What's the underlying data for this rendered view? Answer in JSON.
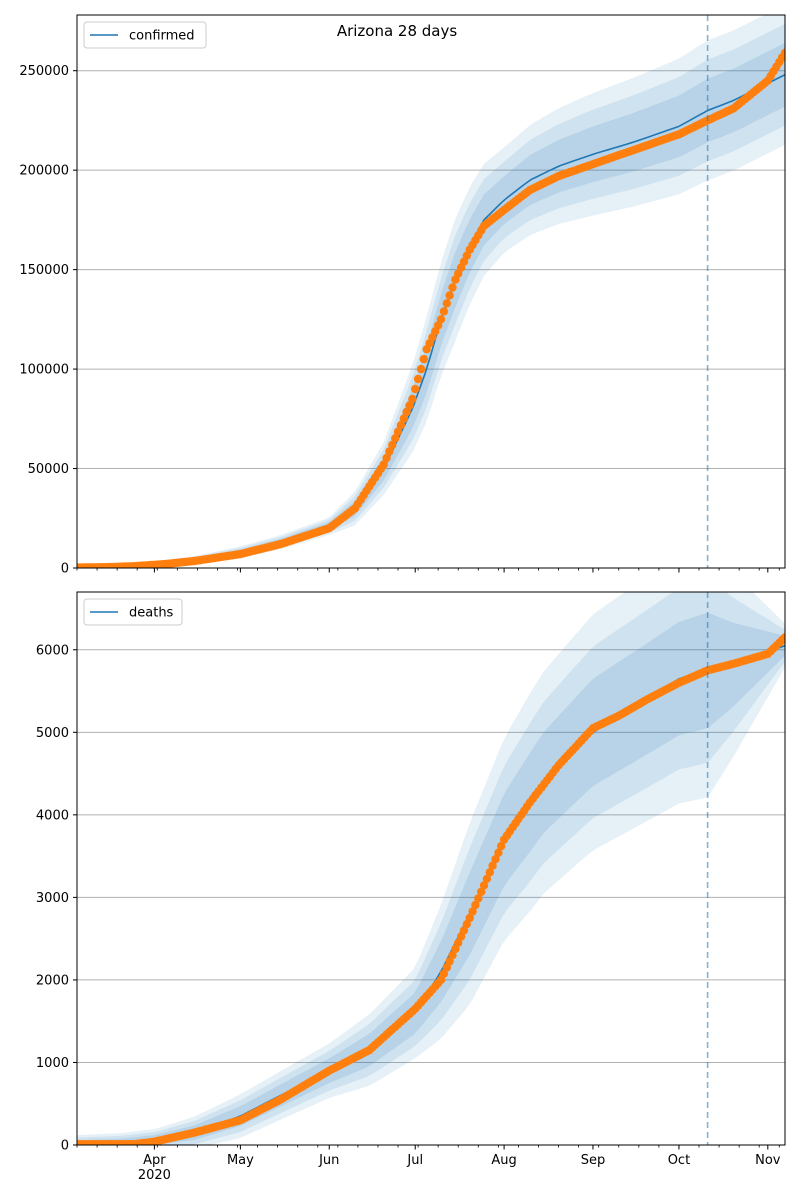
{
  "title": "Arizona 28 days",
  "colors": {
    "line": "#1f77b4",
    "points": "#ff7f0e",
    "band": "#1f77b4",
    "grid": "#b0b0b0",
    "vline": "#1f77b4"
  },
  "chart_data": [
    {
      "type": "line",
      "panel": "confirmed",
      "title": "Arizona 28 days",
      "legend": {
        "label": "confirmed",
        "placement": "top-left"
      },
      "x_axis": {
        "type": "date",
        "range": [
          "2020-03-05",
          "2020-11-07"
        ],
        "tick_labels": [],
        "year_label": ""
      },
      "y_axis": {
        "range": [
          0,
          278000
        ],
        "ticks": [
          0,
          50000,
          100000,
          150000,
          200000,
          250000
        ],
        "tick_labels": [
          "0",
          "50000",
          "100000",
          "150000",
          "200000",
          "250000"
        ]
      },
      "grid": {
        "y": true,
        "x": false
      },
      "forecast_start": "2020-10-11",
      "model": [
        [
          "2020-03-05",
          200
        ],
        [
          "2020-03-20",
          600
        ],
        [
          "2020-04-01",
          2000
        ],
        [
          "2020-04-15",
          4000
        ],
        [
          "2020-05-01",
          8000
        ],
        [
          "2020-05-15",
          13000
        ],
        [
          "2020-06-01",
          21000
        ],
        [
          "2020-06-10",
          30000
        ],
        [
          "2020-06-20",
          50000
        ],
        [
          "2020-06-30",
          80000
        ],
        [
          "2020-07-05",
          100000
        ],
        [
          "2020-07-10",
          125000
        ],
        [
          "2020-07-15",
          145000
        ],
        [
          "2020-07-20",
          162000
        ],
        [
          "2020-07-25",
          175000
        ],
        [
          "2020-08-01",
          185000
        ],
        [
          "2020-08-10",
          195000
        ],
        [
          "2020-08-20",
          202000
        ],
        [
          "2020-09-01",
          208000
        ],
        [
          "2020-09-15",
          214000
        ],
        [
          "2020-10-01",
          222000
        ],
        [
          "2020-10-11",
          230000
        ],
        [
          "2020-10-20",
          235000
        ],
        [
          "2020-11-07",
          248000
        ]
      ],
      "band_widths": [
        [
          "2020-03-05",
          0
        ],
        [
          "2020-06-01",
          2000
        ],
        [
          "2020-06-20",
          6000
        ],
        [
          "2020-07-05",
          12000
        ],
        [
          "2020-07-15",
          14000
        ],
        [
          "2020-08-01",
          12000
        ],
        [
          "2020-09-01",
          14000
        ],
        [
          "2020-10-11",
          16000
        ],
        [
          "2020-11-07",
          16000
        ]
      ],
      "observed": [
        [
          "2020-03-05",
          300
        ],
        [
          "2020-03-15",
          400
        ],
        [
          "2020-03-25",
          900
        ],
        [
          "2020-04-05",
          2000
        ],
        [
          "2020-04-15",
          3500
        ],
        [
          "2020-05-01",
          7000
        ],
        [
          "2020-05-15",
          12000
        ],
        [
          "2020-06-01",
          20000
        ],
        [
          "2020-06-10",
          30000
        ],
        [
          "2020-06-20",
          52000
        ],
        [
          "2020-06-30",
          85000
        ],
        [
          "2020-07-05",
          110000
        ],
        [
          "2020-07-10",
          125000
        ],
        [
          "2020-07-15",
          145000
        ],
        [
          "2020-07-20",
          160000
        ],
        [
          "2020-07-25",
          172000
        ],
        [
          "2020-08-01",
          180000
        ],
        [
          "2020-08-10",
          190000
        ],
        [
          "2020-08-20",
          197000
        ],
        [
          "2020-09-01",
          203000
        ],
        [
          "2020-09-15",
          210000
        ],
        [
          "2020-10-01",
          218000
        ],
        [
          "2020-10-11",
          225000
        ],
        [
          "2020-10-20",
          231000
        ],
        [
          "2020-11-01",
          245000
        ],
        [
          "2020-11-07",
          259000
        ]
      ]
    },
    {
      "type": "line",
      "panel": "deaths",
      "legend": {
        "label": "deaths",
        "placement": "top-left"
      },
      "x_axis": {
        "type": "date",
        "range": [
          "2020-03-05",
          "2020-11-07"
        ],
        "ticks": [
          "2020-04-01",
          "2020-05-01",
          "2020-06-01",
          "2020-07-01",
          "2020-08-01",
          "2020-09-01",
          "2020-10-01",
          "2020-11-01"
        ],
        "tick_labels": [
          "Apr",
          "May",
          "Jun",
          "Jul",
          "Aug",
          "Sep",
          "Oct",
          "Nov"
        ],
        "year_label": "2020"
      },
      "y_axis": {
        "range": [
          0,
          6700
        ],
        "ticks": [
          0,
          1000,
          2000,
          3000,
          4000,
          5000,
          6000
        ],
        "tick_labels": [
          "0",
          "1000",
          "2000",
          "3000",
          "4000",
          "5000",
          "6000"
        ]
      },
      "grid": {
        "y": true,
        "x": false
      },
      "forecast_start": "2020-10-11",
      "model": [
        [
          "2020-03-05",
          10
        ],
        [
          "2020-03-20",
          20
        ],
        [
          "2020-04-01",
          60
        ],
        [
          "2020-04-15",
          150
        ],
        [
          "2020-05-01",
          350
        ],
        [
          "2020-05-15",
          600
        ],
        [
          "2020-06-01",
          900
        ],
        [
          "2020-06-15",
          1150
        ],
        [
          "2020-07-01",
          1600
        ],
        [
          "2020-07-10",
          2100
        ],
        [
          "2020-07-20",
          2800
        ],
        [
          "2020-08-01",
          3700
        ],
        [
          "2020-08-15",
          4400
        ],
        [
          "2020-09-01",
          5000
        ],
        [
          "2020-09-15",
          5300
        ],
        [
          "2020-10-01",
          5650
        ],
        [
          "2020-10-11",
          5750
        ],
        [
          "2020-10-20",
          5820
        ],
        [
          "2020-11-07",
          6050
        ]
      ],
      "band_widths": [
        [
          "2020-03-05",
          50
        ],
        [
          "2020-04-01",
          60
        ],
        [
          "2020-05-01",
          120
        ],
        [
          "2020-06-01",
          150
        ],
        [
          "2020-07-01",
          250
        ],
        [
          "2020-07-20",
          500
        ],
        [
          "2020-08-10",
          600
        ],
        [
          "2020-09-01",
          650
        ],
        [
          "2020-10-11",
          700
        ],
        [
          "2020-11-07",
          120
        ]
      ],
      "observed": [
        [
          "2020-03-05",
          10
        ],
        [
          "2020-03-25",
          10
        ],
        [
          "2020-04-01",
          40
        ],
        [
          "2020-04-15",
          150
        ],
        [
          "2020-05-01",
          300
        ],
        [
          "2020-05-15",
          550
        ],
        [
          "2020-06-01",
          900
        ],
        [
          "2020-06-15",
          1150
        ],
        [
          "2020-07-01",
          1650
        ],
        [
          "2020-07-10",
          2000
        ],
        [
          "2020-07-20",
          2750
        ],
        [
          "2020-08-01",
          3700
        ],
        [
          "2020-08-10",
          4150
        ],
        [
          "2020-08-20",
          4600
        ],
        [
          "2020-09-01",
          5050
        ],
        [
          "2020-09-10",
          5200
        ],
        [
          "2020-09-20",
          5400
        ],
        [
          "2020-10-01",
          5600
        ],
        [
          "2020-10-11",
          5750
        ],
        [
          "2020-10-20",
          5830
        ],
        [
          "2020-11-01",
          5950
        ],
        [
          "2020-11-07",
          6150
        ]
      ]
    }
  ]
}
